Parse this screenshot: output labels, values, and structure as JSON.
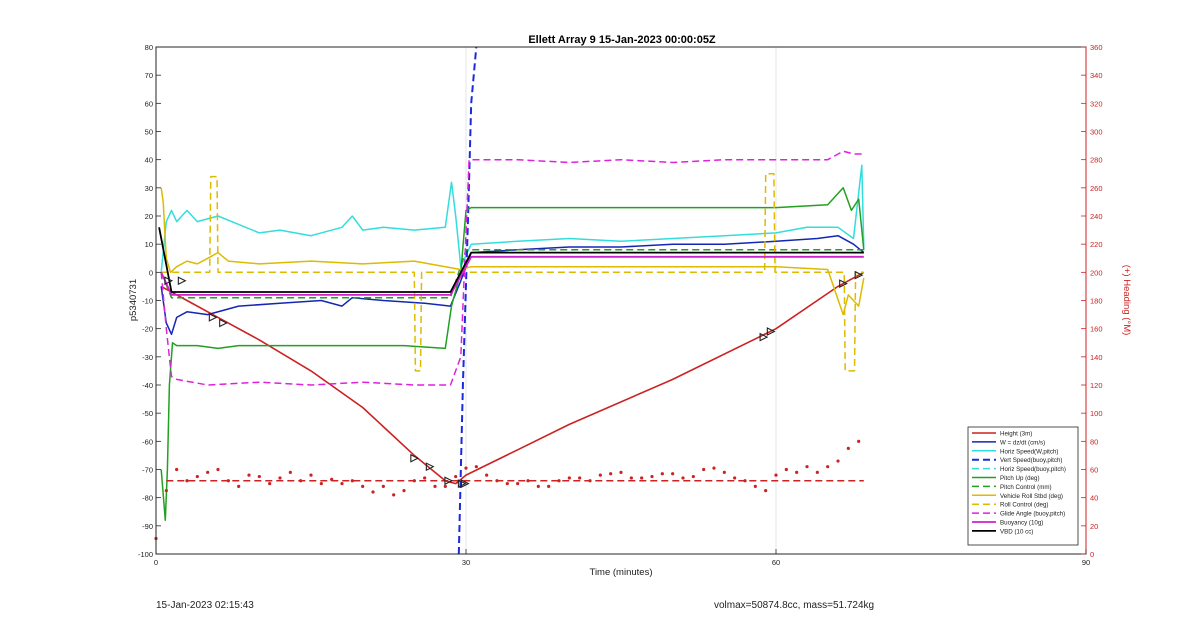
{
  "chart_data": {
    "type": "line",
    "title": "Ellett Array 9 15-Jan-2023 00:00:05Z",
    "xlabel": "Time (minutes)",
    "ylabel": "p5340731",
    "y2label": "(+) Heading (°M)",
    "xlim": [
      0,
      90
    ],
    "ylim": [
      -100,
      80
    ],
    "y2lim": [
      0,
      360
    ],
    "x_ticks": [
      0,
      30,
      60,
      90
    ],
    "y_ticks": [
      -100,
      -90,
      -80,
      -70,
      -60,
      -50,
      -40,
      -30,
      -20,
      -10,
      0,
      10,
      20,
      30,
      40,
      50,
      60,
      70,
      80
    ],
    "y2_ticks": [
      0,
      20,
      40,
      60,
      80,
      100,
      120,
      140,
      160,
      180,
      200,
      220,
      240,
      260,
      280,
      300,
      320,
      340,
      360
    ],
    "grid": true,
    "legend_position": "bottom-right",
    "series": [
      {
        "name": "Height (3m)",
        "color": "#cc2222",
        "style": "solid",
        "width": 1.6,
        "x": [
          0.5,
          3,
          6,
          10,
          15,
          20,
          25,
          28,
          29,
          30,
          35,
          40,
          50,
          60,
          66,
          68.5
        ],
        "y": [
          -5,
          -10,
          -16,
          -24,
          -35,
          -48,
          -65,
          -74,
          -75,
          -72,
          -63,
          -54,
          -38,
          -20,
          -5,
          0
        ]
      },
      {
        "name": "W = dz/dt (cm/s)",
        "color": "#1426b4",
        "style": "solid",
        "width": 1.5,
        "x": [
          0.5,
          1,
          1.5,
          2,
          3,
          5,
          8,
          12,
          16,
          18,
          19,
          22,
          26,
          28.5,
          29.5,
          30.5,
          35,
          40,
          45,
          50,
          55,
          60,
          64,
          66,
          67.5,
          68.5
        ],
        "y": [
          -5,
          -18,
          -22,
          -16,
          -14,
          -15,
          -12,
          -11,
          -10,
          -12,
          -9,
          -10,
          -11,
          -12,
          -3,
          7,
          8,
          9,
          9,
          10,
          10,
          11,
          12,
          13,
          10,
          7
        ]
      },
      {
        "name": "Horiz Speed(W,pitch)",
        "color": "#33dddd",
        "style": "solid",
        "width": 1.5,
        "x": [
          0.5,
          1,
          1.5,
          2,
          3,
          4,
          6,
          8,
          10,
          12,
          15,
          18,
          19,
          20,
          22,
          25,
          28,
          28.6,
          29,
          29.5,
          30.5,
          35,
          40,
          45,
          50,
          55,
          60,
          63,
          66,
          67.5,
          68.3,
          68.5
        ],
        "y": [
          0,
          18,
          22,
          18,
          22,
          18,
          20,
          17,
          14,
          15,
          13,
          16,
          20,
          15,
          16,
          15,
          16,
          32,
          20,
          2,
          10,
          11,
          12,
          11,
          12,
          13,
          14,
          16,
          16,
          12,
          38,
          9
        ]
      },
      {
        "name": "Vert Speed(buoy,pitch)",
        "color": "#1a2adc",
        "style": "dashed",
        "width": 2,
        "x": [
          29.3,
          29.7,
          30.2,
          30.5,
          31.0
        ],
        "y": [
          -100,
          -40,
          20,
          60,
          80
        ]
      },
      {
        "name": "Horiz Speed(buoy,pitch)",
        "color": "#33dddd",
        "style": "dashed",
        "width": 1.5,
        "x": [],
        "y": []
      },
      {
        "name": "Pitch Up (deg)",
        "color": "#22a022",
        "style": "solid",
        "width": 1.5,
        "x": [
          0.5,
          0.9,
          1.1,
          1.3,
          1.6,
          2,
          4,
          6,
          8,
          12,
          16,
          20,
          24,
          28,
          28.6,
          29.5,
          30,
          30.5,
          40,
          50,
          60,
          65,
          66.5,
          67.3,
          68,
          68.5
        ],
        "y": [
          -70,
          -88,
          -70,
          -40,
          -25,
          -26,
          -26,
          -27,
          -26,
          -26,
          -26,
          -26,
          -26,
          -27,
          -12,
          0,
          22,
          23,
          23,
          23,
          23,
          24,
          30,
          22,
          26,
          8
        ]
      },
      {
        "name": "Pitch Control (mm)",
        "color": "#22a022",
        "style": "dashed",
        "width": 1.5,
        "x": [
          0.5,
          1.5,
          28.5,
          30,
          68.5
        ],
        "y": [
          0,
          -9,
          -9,
          8,
          8
        ]
      },
      {
        "name": "Vehicle Roll Stbd (deg)",
        "color": "#ddbb00",
        "style": "solid",
        "width": 1.5,
        "x": [
          0.5,
          0.7,
          1,
          1.4,
          2,
          3,
          4,
          5,
          6,
          7,
          10,
          15,
          20,
          25,
          28,
          29.5,
          30.5,
          40,
          50,
          60,
          65,
          66.5,
          67,
          68,
          68.5
        ],
        "y": [
          30,
          25,
          5,
          0,
          2,
          4,
          3,
          5,
          7,
          4,
          3,
          4,
          3,
          4,
          2,
          1,
          2,
          2,
          2,
          2,
          1,
          -15,
          -8,
          -12,
          -2
        ]
      },
      {
        "name": "Roll Control (deg)",
        "color": "#ddbb00",
        "style": "dashed",
        "width": 1.5,
        "x": [
          0.5,
          5.2,
          5.3,
          5.9,
          6.0,
          25,
          25.1,
          25.6,
          25.7,
          29,
          30,
          58.9,
          59.0,
          59.8,
          59.9,
          66.6,
          66.7,
          67.6,
          67.7,
          68.5
        ],
        "y": [
          0,
          0,
          34,
          34,
          0,
          0,
          -35,
          -35,
          0,
          0,
          0,
          0,
          35,
          35,
          0,
          0,
          -35,
          -35,
          0,
          0
        ]
      },
      {
        "name": "Glide Angle (buoy,pitch)",
        "color": "#dd22dd",
        "style": "dashed",
        "width": 1.5,
        "x": [
          0.5,
          1,
          1.5,
          2,
          5,
          10,
          15,
          20,
          25,
          28.5,
          29.5,
          30.3,
          30.6,
          35,
          40,
          45,
          50,
          55,
          60,
          65,
          66.5,
          67.5,
          68.5
        ],
        "y": [
          0,
          -20,
          -37,
          -38,
          -40,
          -39,
          -40,
          -39,
          -40,
          -40,
          -30,
          40,
          40,
          40,
          39,
          40,
          39,
          40,
          40,
          40,
          43,
          42,
          42
        ]
      },
      {
        "name": "Buoyancy (10g)",
        "color": "#cc22cc",
        "style": "solid",
        "width": 1.8,
        "x": [
          0.5,
          1.5,
          28.5,
          30.5,
          68.5
        ],
        "y": [
          0,
          -8,
          -8,
          5.5,
          5.5
        ]
      },
      {
        "name": "VBD (10 cc)",
        "color": "#000000",
        "style": "solid",
        "width": 1.8,
        "x": [
          0.3,
          1.5,
          28.5,
          30.5,
          68.5
        ],
        "y": [
          16,
          -7,
          -7,
          7,
          7
        ]
      },
      {
        "name": "",
        "color": "#cc2222",
        "style": "dotted",
        "axis": "right",
        "x": [
          0,
          1,
          2,
          3,
          4,
          5,
          6,
          7,
          8,
          9,
          10,
          11,
          12,
          13,
          14,
          15,
          16,
          17,
          18,
          19,
          20,
          21,
          22,
          23,
          24,
          25,
          26,
          27,
          28,
          29,
          30,
          31,
          32,
          33,
          34,
          35,
          36,
          37,
          38,
          39,
          40,
          41,
          42,
          43,
          44,
          45,
          46,
          47,
          48,
          49,
          50,
          51,
          52,
          53,
          54,
          55,
          56,
          57,
          58,
          59,
          60,
          61,
          62,
          63,
          64,
          65,
          66,
          67,
          68
        ],
        "y": [
          11,
          45,
          60,
          52,
          55,
          58,
          60,
          52,
          48,
          56,
          55,
          50,
          54,
          58,
          52,
          56,
          50,
          53,
          50,
          52,
          48,
          44,
          48,
          42,
          45,
          52,
          54,
          48,
          48,
          55,
          61,
          62,
          56,
          52,
          50,
          50,
          52,
          48,
          48,
          52,
          54,
          54,
          52,
          56,
          57,
          58,
          54,
          54,
          55,
          57,
          57,
          54,
          55,
          60,
          61,
          58,
          54,
          52,
          48,
          45,
          56,
          60,
          58,
          62,
          58,
          62,
          66,
          75,
          80
        ]
      },
      {
        "name": "",
        "color": "#cc2222",
        "style": "dashed",
        "axis": "right",
        "x": [
          1,
          68.5
        ],
        "y": [
          52,
          52
        ]
      }
    ],
    "markers": {
      "color": "#222222",
      "x": [
        1.2,
        2.5,
        5.5,
        6.5,
        25,
        26.5,
        28.3,
        29.6,
        29.9,
        58.8,
        59.5,
        66.5,
        68
      ],
      "y": [
        -3,
        -3,
        -16,
        -18,
        -66,
        -69,
        -74,
        -75,
        -75,
        -23,
        -21,
        -4,
        -1
      ]
    }
  },
  "footer": {
    "left": "15-Jan-2023 02:15:43",
    "right": "volmax=50874.8cc, mass=51.724kg"
  }
}
